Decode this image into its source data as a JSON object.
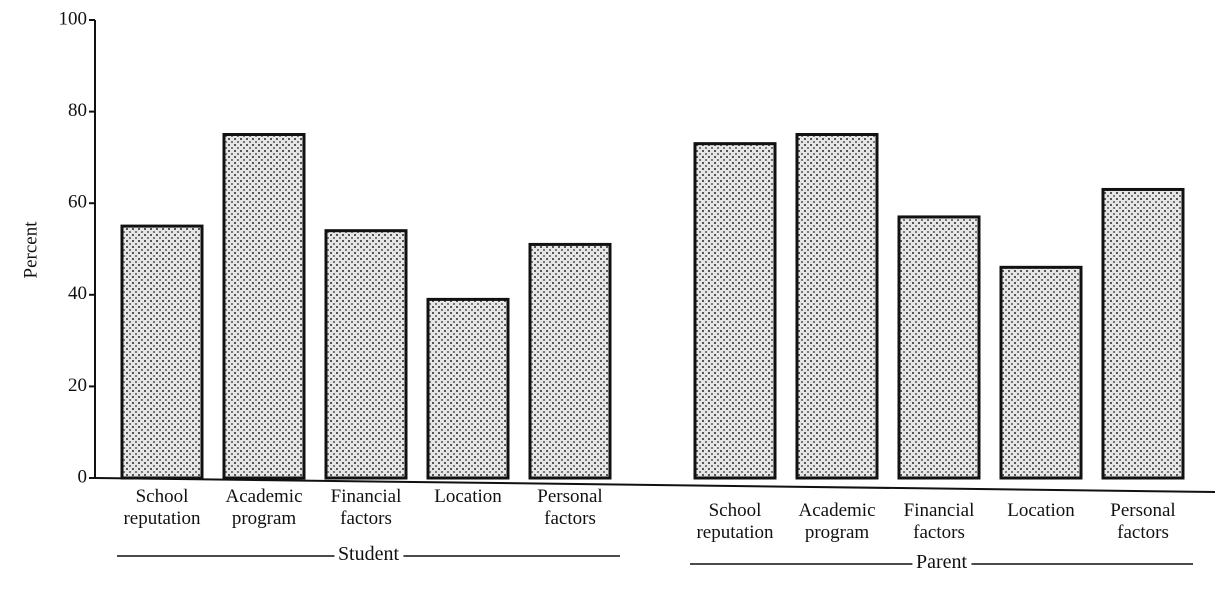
{
  "chart_data": {
    "type": "bar",
    "ylabel": "Percent",
    "ylim": [
      0,
      100
    ],
    "yticks": [
      0,
      20,
      40,
      60,
      80,
      100
    ],
    "color": "#9a9a9a",
    "groups": [
      {
        "name": "Student",
        "categories": [
          "School\nreputation",
          "Academic\nprogram",
          "Financial\nfactors",
          "Location",
          "Personal\nfactors"
        ],
        "values": [
          55,
          75,
          54,
          39,
          51
        ]
      },
      {
        "name": "Parent",
        "categories": [
          "School\nreputation",
          "Academic\nprogram",
          "Financial\nfactors",
          "Location",
          "Personal\nfactors"
        ],
        "values": [
          73,
          75,
          57,
          46,
          63
        ]
      }
    ]
  }
}
